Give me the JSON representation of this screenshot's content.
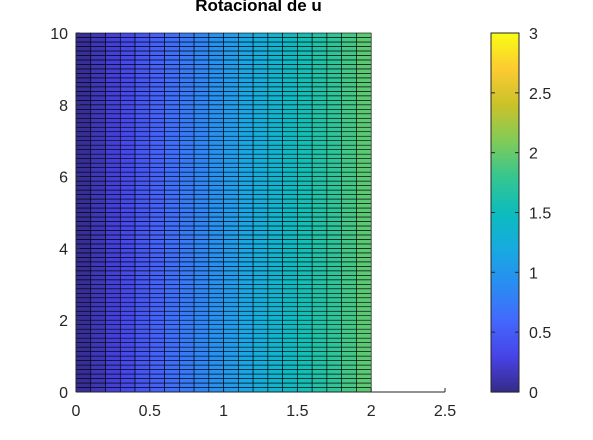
{
  "chart_data": {
    "type": "heatmap",
    "title": "Rotacional de  u",
    "xlabel": "",
    "ylabel": "",
    "xlim": [
      0,
      2.5
    ],
    "ylim": [
      0,
      10
    ],
    "x_ticks": [
      "0",
      "0.5",
      "1",
      "1.5",
      "2",
      "2.5"
    ],
    "y_ticks": [
      "0",
      "2",
      "4",
      "6",
      "8",
      "10"
    ],
    "grid": false,
    "field": {
      "description": "value equals x coordinate",
      "x_range": [
        0,
        2
      ],
      "y_range": [
        0,
        10
      ],
      "x_cells": 20,
      "y_cells": 80,
      "value_range": [
        0,
        2
      ]
    },
    "colorbar": {
      "colormap": "parula",
      "clim": [
        0,
        3
      ],
      "ticks": [
        "0",
        "0.5",
        "1",
        "1.5",
        "2",
        "2.5",
        "3"
      ],
      "placement": "right"
    }
  }
}
